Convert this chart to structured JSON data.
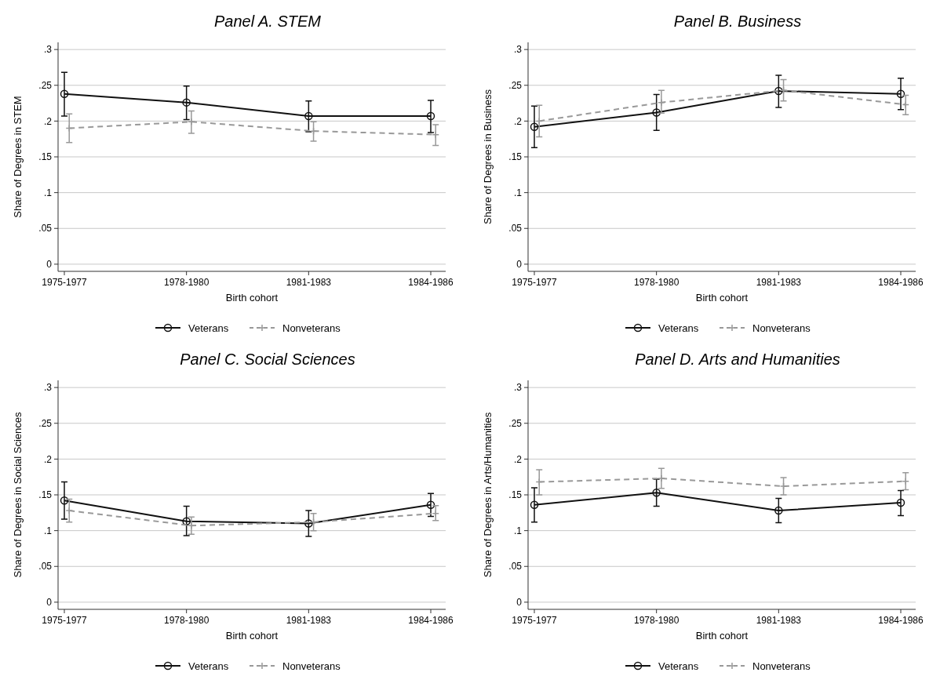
{
  "chart_data": [
    {
      "type": "line",
      "title": "Panel A. STEM",
      "xlabel": "Birth cohort",
      "ylabel": "Share of Degrees in STEM",
      "categories": [
        "1975-1977",
        "1978-1980",
        "1981-1983",
        "1984-1986"
      ],
      "ylim": [
        -0.01,
        0.31
      ],
      "yticks": [
        {
          "value": 0,
          "label": "0"
        },
        {
          "value": 0.05,
          "label": ".05"
        },
        {
          "value": 0.1,
          "label": ".1"
        },
        {
          "value": 0.15,
          "label": ".15"
        },
        {
          "value": 0.2,
          "label": ".2"
        },
        {
          "value": 0.25,
          "label": ".25"
        },
        {
          "value": 0.3,
          "label": ".3"
        }
      ],
      "grid": "y",
      "legend": "bottom",
      "series": [
        {
          "name": "Veterans",
          "color": "#111111",
          "marker": "circle",
          "line_style": "solid",
          "values": [
            0.238,
            0.226,
            0.207,
            0.207
          ],
          "errors": [
            [
              0.207,
              0.268
            ],
            [
              0.202,
              0.249
            ],
            [
              0.185,
              0.228
            ],
            [
              0.184,
              0.229
            ]
          ]
        },
        {
          "name": "Nonveterans",
          "color": "#999999",
          "marker": "cross",
          "line_style": "dashed",
          "values": [
            0.19,
            0.199,
            0.186,
            0.181
          ],
          "errors": [
            [
              0.17,
              0.21
            ],
            [
              0.183,
              0.214
            ],
            [
              0.172,
              0.199
            ],
            [
              0.166,
              0.195
            ]
          ]
        }
      ]
    },
    {
      "type": "line",
      "title": "Panel B. Business",
      "xlabel": "Birth cohort",
      "ylabel": "Share of Degrees in Business",
      "categories": [
        "1975-1977",
        "1978-1980",
        "1981-1983",
        "1984-1986"
      ],
      "ylim": [
        -0.01,
        0.31
      ],
      "yticks": [
        {
          "value": 0,
          "label": "0"
        },
        {
          "value": 0.05,
          "label": ".05"
        },
        {
          "value": 0.1,
          "label": ".1"
        },
        {
          "value": 0.15,
          "label": ".15"
        },
        {
          "value": 0.2,
          "label": ".2"
        },
        {
          "value": 0.25,
          "label": ".25"
        },
        {
          "value": 0.3,
          "label": ".3"
        }
      ],
      "grid": "y",
      "legend": "bottom",
      "series": [
        {
          "name": "Veterans",
          "color": "#111111",
          "marker": "circle",
          "line_style": "solid",
          "values": [
            0.192,
            0.212,
            0.242,
            0.238
          ],
          "errors": [
            [
              0.163,
              0.221
            ],
            [
              0.187,
              0.237
            ],
            [
              0.219,
              0.264
            ],
            [
              0.216,
              0.26
            ]
          ]
        },
        {
          "name": "Nonveterans",
          "color": "#999999",
          "marker": "cross",
          "line_style": "dashed",
          "values": [
            0.2,
            0.226,
            0.243,
            0.223
          ],
          "errors": [
            [
              0.178,
              0.222
            ],
            [
              0.211,
              0.243
            ],
            [
              0.228,
              0.258
            ],
            [
              0.209,
              0.236
            ]
          ]
        }
      ]
    },
    {
      "type": "line",
      "title": "Panel C. Social Sciences",
      "xlabel": "Birth cohort",
      "ylabel": "Share of Degrees in Social Sciences",
      "categories": [
        "1975-1977",
        "1978-1980",
        "1981-1983",
        "1984-1986"
      ],
      "ylim": [
        -0.01,
        0.31
      ],
      "yticks": [
        {
          "value": 0,
          "label": "0"
        },
        {
          "value": 0.05,
          "label": ".05"
        },
        {
          "value": 0.1,
          "label": ".1"
        },
        {
          "value": 0.15,
          "label": ".15"
        },
        {
          "value": 0.2,
          "label": ".2"
        },
        {
          "value": 0.25,
          "label": ".25"
        },
        {
          "value": 0.3,
          "label": ".3"
        }
      ],
      "grid": "y",
      "legend": "bottom",
      "series": [
        {
          "name": "Veterans",
          "color": "#111111",
          "marker": "circle",
          "line_style": "solid",
          "values": [
            0.142,
            0.113,
            0.11,
            0.136
          ],
          "errors": [
            [
              0.116,
              0.168
            ],
            [
              0.093,
              0.134
            ],
            [
              0.092,
              0.128
            ],
            [
              0.12,
              0.152
            ]
          ]
        },
        {
          "name": "Nonveterans",
          "color": "#999999",
          "marker": "cross",
          "line_style": "dashed",
          "values": [
            0.128,
            0.107,
            0.112,
            0.124
          ],
          "errors": [
            [
              0.112,
              0.144
            ],
            [
              0.095,
              0.119
            ],
            [
              0.1,
              0.124
            ],
            [
              0.114,
              0.135
            ]
          ]
        }
      ]
    },
    {
      "type": "line",
      "title": "Panel D. Arts and Humanities",
      "xlabel": "Birth cohort",
      "ylabel": "Share of Degrees in Arts/Humanities",
      "categories": [
        "1975-1977",
        "1978-1980",
        "1981-1983",
        "1984-1986"
      ],
      "ylim": [
        -0.01,
        0.31
      ],
      "yticks": [
        {
          "value": 0,
          "label": "0"
        },
        {
          "value": 0.05,
          "label": ".05"
        },
        {
          "value": 0.1,
          "label": ".1"
        },
        {
          "value": 0.15,
          "label": ".15"
        },
        {
          "value": 0.2,
          "label": ".2"
        },
        {
          "value": 0.25,
          "label": ".25"
        },
        {
          "value": 0.3,
          "label": ".3"
        }
      ],
      "grid": "y",
      "legend": "bottom",
      "series": [
        {
          "name": "Veterans",
          "color": "#111111",
          "marker": "circle",
          "line_style": "solid",
          "values": [
            0.136,
            0.153,
            0.128,
            0.139
          ],
          "errors": [
            [
              0.112,
              0.16
            ],
            [
              0.134,
              0.172
            ],
            [
              0.111,
              0.145
            ],
            [
              0.121,
              0.156
            ]
          ]
        },
        {
          "name": "Nonveterans",
          "color": "#999999",
          "marker": "cross",
          "line_style": "dashed",
          "values": [
            0.168,
            0.173,
            0.162,
            0.169
          ],
          "errors": [
            [
              0.15,
              0.185
            ],
            [
              0.159,
              0.187
            ],
            [
              0.15,
              0.174
            ],
            [
              0.157,
              0.181
            ]
          ]
        }
      ]
    }
  ]
}
